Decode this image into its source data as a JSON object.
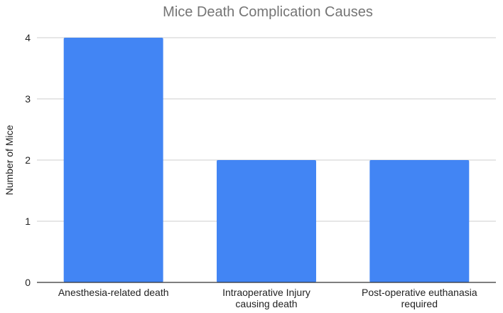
{
  "chart_data": {
    "type": "bar",
    "title": "Mice Death Complication Causes",
    "xlabel": "",
    "ylabel": "Number of Mice",
    "categories": [
      [
        "Anesthesia-related death"
      ],
      [
        "Intraoperative Injury",
        "causing death"
      ],
      [
        "Post-operative euthanasia",
        "required"
      ]
    ],
    "values": [
      4,
      2,
      2
    ],
    "ylim": [
      0,
      4
    ],
    "yticks": [
      0,
      1,
      2,
      3,
      4
    ],
    "grid": true,
    "legend": "none",
    "colors": {
      "bar": "#4285f4",
      "grid": "#cccccc",
      "title": "#757575"
    }
  }
}
